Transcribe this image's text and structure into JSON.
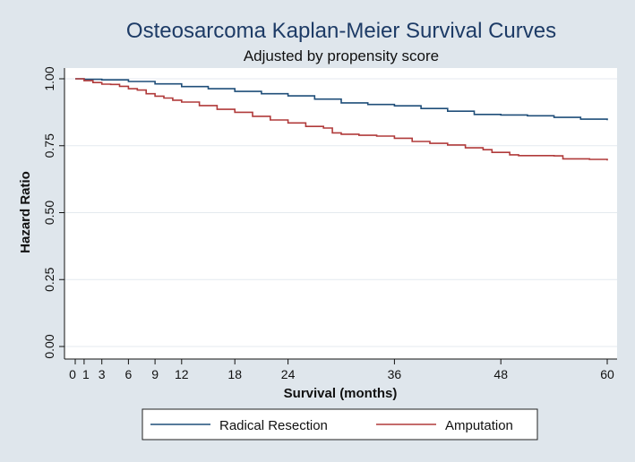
{
  "chart_data": {
    "type": "line",
    "title": "Osteosarcoma Kaplan-Meier Survival Curves",
    "subtitle": "Adjusted by propensity score",
    "xlabel": "Survival (months)",
    "ylabel": "Hazard Ratio",
    "xlim": [
      0,
      60
    ],
    "ylim": [
      0,
      1
    ],
    "x_ticks": [
      0,
      1,
      3,
      6,
      9,
      12,
      18,
      24,
      36,
      48,
      60
    ],
    "x_tick_labels": [
      "0",
      "1",
      "3",
      "6",
      "9",
      "12",
      "18",
      "24",
      "36",
      "48",
      "60"
    ],
    "y_ticks": [
      0,
      0.25,
      0.5,
      0.75,
      1.0
    ],
    "y_tick_labels": [
      "0.00",
      "0.25",
      "0.50",
      "0.75",
      "1.00"
    ],
    "grid": true,
    "legend_position": "bottom",
    "series": [
      {
        "name": "Radical Resection",
        "color": "#1f4e79",
        "points": [
          [
            0,
            1.0
          ],
          [
            1,
            0.998
          ],
          [
            3,
            0.996
          ],
          [
            6,
            0.99
          ],
          [
            9,
            0.981
          ],
          [
            12,
            0.971
          ],
          [
            15,
            0.963
          ],
          [
            18,
            0.953
          ],
          [
            21,
            0.944
          ],
          [
            24,
            0.936
          ],
          [
            27,
            0.924
          ],
          [
            30,
            0.91
          ],
          [
            33,
            0.904
          ],
          [
            36,
            0.899
          ],
          [
            39,
            0.889
          ],
          [
            42,
            0.879
          ],
          [
            45,
            0.867
          ],
          [
            48,
            0.865
          ],
          [
            51,
            0.862
          ],
          [
            54,
            0.856
          ],
          [
            57,
            0.849
          ],
          [
            60,
            0.845
          ]
        ]
      },
      {
        "name": "Amputation",
        "color": "#b03a3a",
        "points": [
          [
            0,
            1.0
          ],
          [
            1,
            0.993
          ],
          [
            2,
            0.986
          ],
          [
            3,
            0.98
          ],
          [
            4,
            0.979
          ],
          [
            5,
            0.972
          ],
          [
            6,
            0.963
          ],
          [
            7,
            0.958
          ],
          [
            8,
            0.944
          ],
          [
            9,
            0.935
          ],
          [
            10,
            0.928
          ],
          [
            11,
            0.92
          ],
          [
            12,
            0.913
          ],
          [
            14,
            0.9
          ],
          [
            16,
            0.886
          ],
          [
            18,
            0.875
          ],
          [
            20,
            0.86
          ],
          [
            22,
            0.846
          ],
          [
            24,
            0.835
          ],
          [
            26,
            0.822
          ],
          [
            28,
            0.816
          ],
          [
            29,
            0.798
          ],
          [
            30,
            0.793
          ],
          [
            32,
            0.789
          ],
          [
            34,
            0.786
          ],
          [
            36,
            0.778
          ],
          [
            38,
            0.766
          ],
          [
            40,
            0.759
          ],
          [
            42,
            0.753
          ],
          [
            44,
            0.742
          ],
          [
            46,
            0.735
          ],
          [
            47,
            0.725
          ],
          [
            49,
            0.716
          ],
          [
            50,
            0.713
          ],
          [
            54,
            0.712
          ],
          [
            55,
            0.701
          ],
          [
            58,
            0.699
          ],
          [
            60,
            0.695
          ]
        ]
      }
    ]
  }
}
